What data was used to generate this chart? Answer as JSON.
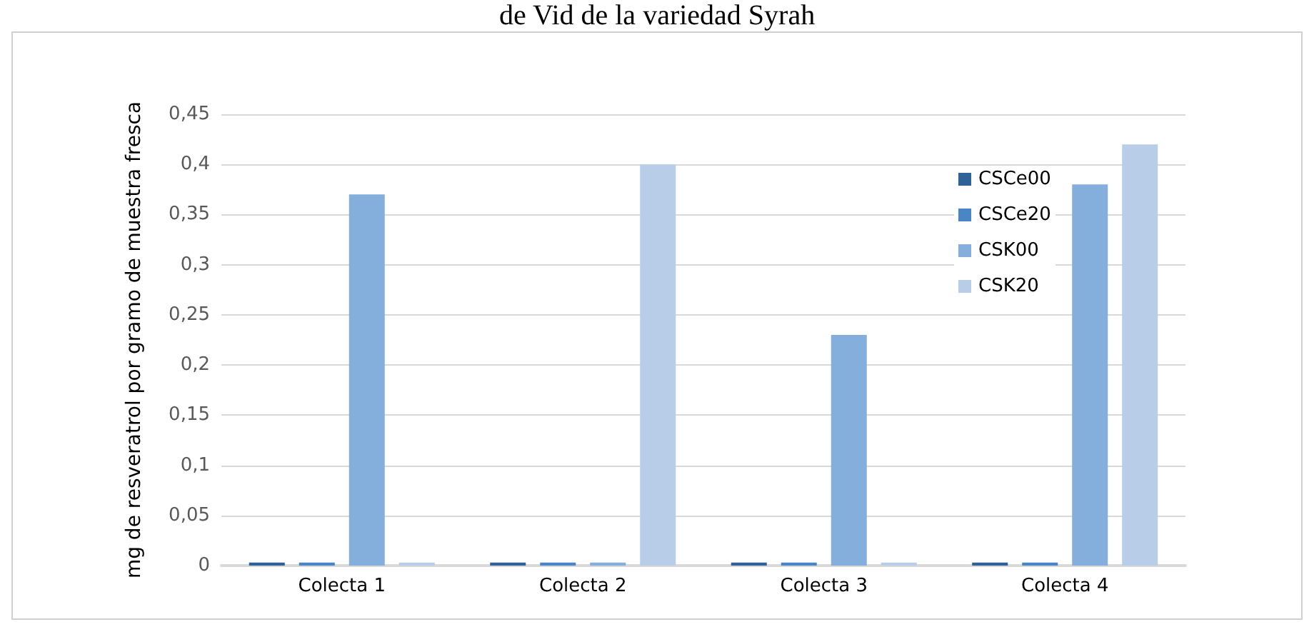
{
  "chart_data": {
    "type": "bar",
    "title": "de Vid de la variedad Syrah",
    "ylabel": "mg de resveratrol por gramo de muestra fresca",
    "categories": [
      "Colecta 1",
      "Colecta 2",
      "Colecta 3",
      "Colecta 4"
    ],
    "series": [
      {
        "name": "CSCe00",
        "color": "#2f6299",
        "values": [
          0.003,
          0.003,
          0.003,
          0.003
        ]
      },
      {
        "name": "CSCe20",
        "color": "#4a86c5",
        "values": [
          0.003,
          0.003,
          0.003,
          0.003
        ]
      },
      {
        "name": "CSK00",
        "color": "#84aedc",
        "values": [
          0.37,
          0.003,
          0.23,
          0.38
        ]
      },
      {
        "name": "CSK20",
        "color": "#b7cde8",
        "values": [
          0.003,
          0.4,
          0.003,
          0.42
        ]
      }
    ],
    "ylim": [
      0,
      0.45
    ],
    "yticks": [
      0,
      {
        "value": 0.05,
        "label": "0,05"
      },
      {
        "value": 0.1,
        "label": "0,1"
      },
      {
        "value": 0.15,
        "label": "0,15"
      },
      {
        "value": 0.2,
        "label": "0,2"
      },
      {
        "value": 0.25,
        "label": "0,25"
      },
      {
        "value": 0.3,
        "label": "0,3"
      },
      {
        "value": 0.35,
        "label": "0,35"
      },
      {
        "value": 0.4,
        "label": "0,4"
      },
      {
        "value": 0.45,
        "label": "0,45"
      }
    ],
    "grid": "y",
    "legend": "top right"
  }
}
